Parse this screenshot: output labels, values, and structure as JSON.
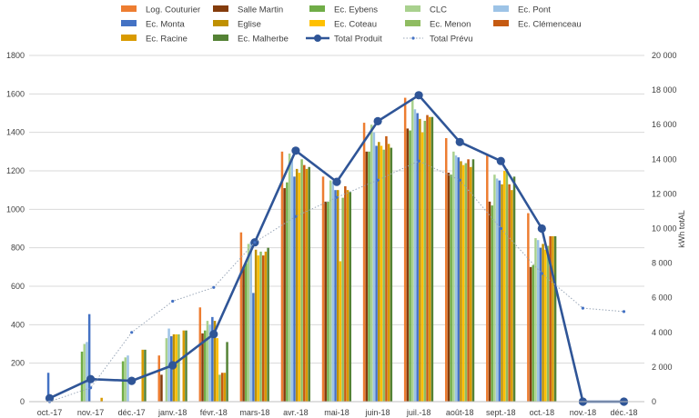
{
  "chart_data": {
    "type": "bar",
    "categories": [
      "oct.-17",
      "nov.-17",
      "déc.-17",
      "janv.-18",
      "févr.-18",
      "mars-18",
      "avr.-18",
      "mai-18",
      "juin-18",
      "juil.-18",
      "août-18",
      "sept.-18",
      "oct.-18",
      "nov.-18",
      "déc.-18"
    ],
    "ylim": [
      0,
      1800
    ],
    "y_ticks": [
      "0",
      "200",
      "400",
      "600",
      "800",
      "1000",
      "1200",
      "1400",
      "1600",
      "1800"
    ],
    "y2lim": [
      0,
      20000
    ],
    "y2_ticks": [
      "0",
      "2 000",
      "4 000",
      "6 000",
      "8 000",
      "10 000",
      "12 000",
      "14 000",
      "16 000",
      "18 000",
      "20 000"
    ],
    "y2label": "kWh totAL",
    "grid": true,
    "legend_position": "top",
    "series": [
      {
        "name": "Log. Couturier",
        "color": "#ED7D31",
        "values": [
          0,
          0,
          0,
          240,
          490,
          880,
          1300,
          1170,
          1450,
          1580,
          1370,
          1280,
          980,
          0,
          0
        ]
      },
      {
        "name": "Salle Martin",
        "color": "#843C0C",
        "values": [
          0,
          0,
          0,
          140,
          355,
          700,
          1110,
          1040,
          1300,
          1420,
          1190,
          1040,
          700,
          0,
          0
        ]
      },
      {
        "name": "Ec. Eybens",
        "color": "#70AD47",
        "values": [
          0,
          260,
          210,
          0,
          370,
          720,
          1140,
          1040,
          1300,
          1410,
          1180,
          1020,
          710,
          0,
          0
        ]
      },
      {
        "name": "CLC",
        "color": "#A9D18E",
        "values": [
          0,
          300,
          230,
          330,
          420,
          820,
          1290,
          1150,
          1440,
          1570,
          1300,
          1180,
          850,
          0,
          0
        ]
      },
      {
        "name": "Ec. Pont",
        "color": "#9DC3E6",
        "values": [
          0,
          310,
          240,
          380,
          400,
          830,
          1260,
          1140,
          1400,
          1520,
          1280,
          1160,
          840,
          0,
          0
        ]
      },
      {
        "name": "Ec. Monta",
        "color": "#4472C4",
        "values": [
          150,
          455,
          0,
          340,
          440,
          565,
          1170,
          1100,
          1330,
          1500,
          1270,
          1150,
          800,
          0,
          0
        ]
      },
      {
        "name": "Eglise",
        "color": "#BF9000",
        "values": [
          0,
          0,
          0,
          350,
          420,
          790,
          1210,
          1100,
          1350,
          1470,
          1250,
          1130,
          820,
          0,
          0
        ]
      },
      {
        "name": "Ec. Coteau",
        "color": "#FFC000",
        "values": [
          0,
          0,
          0,
          350,
          330,
          760,
          1190,
          730,
          1330,
          1400,
          1230,
          1200,
          790,
          0,
          0
        ]
      },
      {
        "name": "Ec. Menon",
        "color": "#8FBC61",
        "values": [
          0,
          0,
          0,
          350,
          140,
          780,
          1260,
          1060,
          1310,
          1460,
          1240,
          1210,
          810,
          0,
          0
        ]
      },
      {
        "name": "Ec. Clémenceau",
        "color": "#C55A11",
        "values": [
          0,
          0,
          0,
          0,
          150,
          760,
          1230,
          1120,
          1380,
          1490,
          1260,
          1130,
          860,
          0,
          0
        ]
      },
      {
        "name": "Ec. Racine",
        "color": "#D99A00",
        "values": [
          0,
          20,
          270,
          370,
          150,
          780,
          1210,
          1100,
          1340,
          1480,
          1220,
          1100,
          860,
          0,
          0
        ]
      },
      {
        "name": "Ec. Malherbe",
        "color": "#548235",
        "values": [
          0,
          0,
          270,
          370,
          310,
          800,
          1220,
          1090,
          1320,
          1480,
          1260,
          1170,
          860,
          0,
          0
        ]
      }
    ],
    "lines": [
      {
        "name": "Total Produit",
        "color": "#2F5597",
        "axis": "right",
        "values": [
          200,
          1300,
          1200,
          2100,
          3900,
          9200,
          14500,
          12700,
          16200,
          17700,
          15000,
          13900,
          10000,
          0,
          0
        ]
      },
      {
        "name": "Total Prévu",
        "color": "#4472C4",
        "axis": "right",
        "dotted": true,
        "values": [
          0,
          800,
          4000,
          5800,
          6600,
          9200,
          10700,
          11800,
          12800,
          13900,
          12800,
          10000,
          7400,
          5400,
          5200
        ]
      }
    ]
  }
}
